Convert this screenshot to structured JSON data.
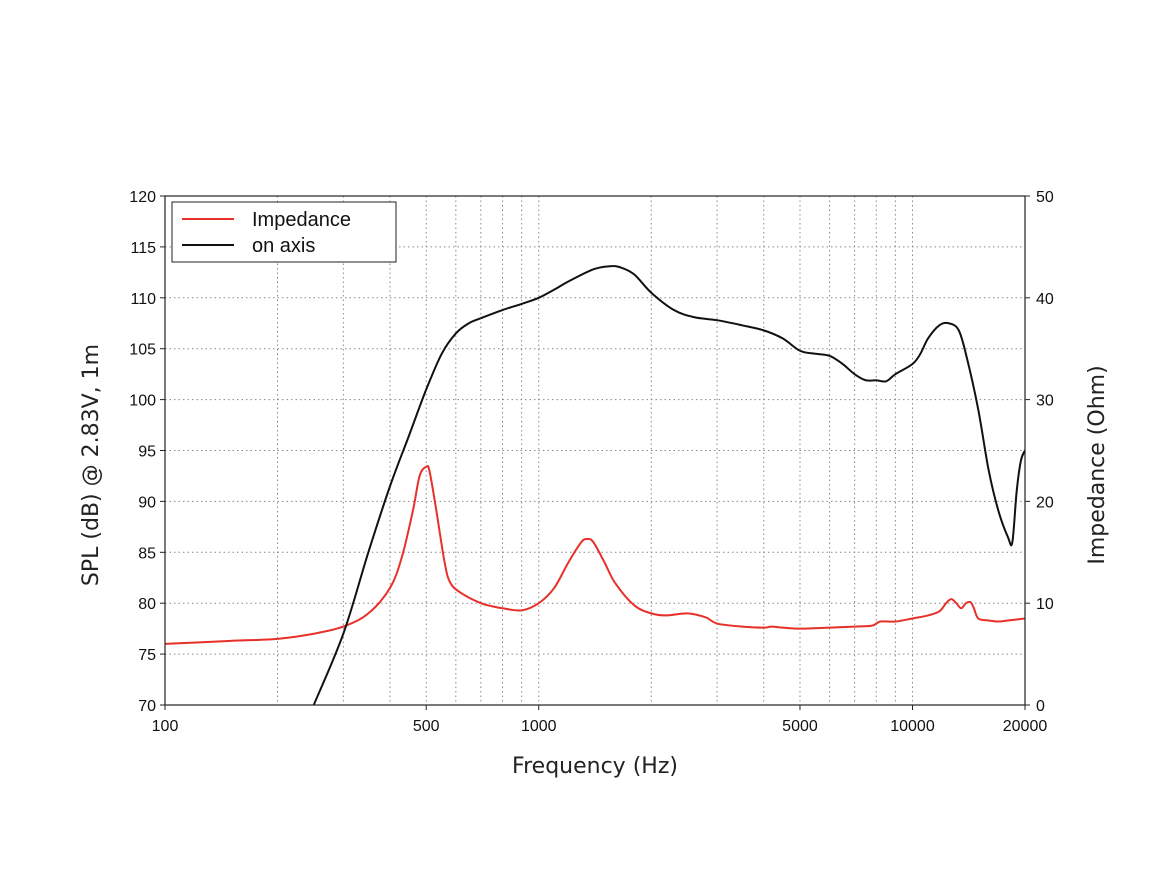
{
  "chart_data": {
    "type": "line",
    "xlabel": "Frequency (Hz)",
    "ylabel_left": "SPL (dB) @ 2.83V, 1m",
    "ylabel_right": "Impedance (Ohm)",
    "x_scale": "log",
    "xlim": [
      100,
      20000
    ],
    "ylim_left": [
      70,
      120
    ],
    "ylim_right": [
      0,
      50
    ],
    "x_tick_labels": [
      "100",
      "500",
      "1000",
      "5000",
      "10000",
      "20000"
    ],
    "x_ticks": [
      100,
      500,
      1000,
      5000,
      10000,
      20000
    ],
    "y_left_ticks": [
      "70",
      "75",
      "80",
      "85",
      "90",
      "95",
      "100",
      "105",
      "110",
      "115",
      "120"
    ],
    "y_right_ticks": [
      "0",
      "10",
      "20",
      "30",
      "40",
      "50"
    ],
    "x_grid": [
      200,
      300,
      400,
      500,
      600,
      700,
      800,
      900,
      1000,
      2000,
      3000,
      4000,
      5000,
      6000,
      7000,
      8000,
      9000,
      10000
    ],
    "grid": true,
    "legend_position": "top-left",
    "series": [
      {
        "name": "Impedance",
        "axis": "right",
        "color": "#e8302a",
        "x": [
          100,
          150,
          200,
          250,
          300,
          350,
          400,
          430,
          460,
          480,
          500,
          510,
          530,
          560,
          580,
          620,
          700,
          750,
          800,
          900,
          1000,
          1100,
          1200,
          1300,
          1350,
          1400,
          1500,
          1600,
          1800,
          2000,
          2200,
          2500,
          2800,
          3000,
          3500,
          4000,
          4200,
          4500,
          5000,
          6000,
          7000,
          7800,
          8200,
          9000,
          10000,
          11000,
          11800,
          12300,
          12700,
          13100,
          13500,
          13900,
          14300,
          14600,
          15000,
          16000,
          17000,
          18000,
          19000,
          20000
        ],
        "values": [
          6.0,
          6.3,
          6.5,
          7.0,
          7.7,
          9.0,
          11.5,
          14.5,
          19.0,
          22.5,
          23.4,
          23.0,
          19.5,
          14.0,
          12.0,
          11.0,
          10.0,
          9.7,
          9.5,
          9.3,
          10.0,
          11.5,
          14.0,
          16.0,
          16.3,
          16.0,
          14.0,
          12.0,
          9.8,
          9.0,
          8.8,
          9.0,
          8.6,
          8.0,
          7.7,
          7.6,
          7.7,
          7.6,
          7.5,
          7.6,
          7.7,
          7.8,
          8.2,
          8.2,
          8.5,
          8.8,
          9.2,
          10.0,
          10.4,
          10.0,
          9.5,
          10.0,
          10.1,
          9.5,
          8.5,
          8.3,
          8.2,
          8.3,
          8.4,
          8.5
        ]
      },
      {
        "name": "on axis",
        "axis": "left",
        "color": "#111111",
        "x": [
          100,
          250,
          300,
          350,
          400,
          450,
          500,
          550,
          600,
          650,
          700,
          800,
          900,
          1000,
          1100,
          1200,
          1400,
          1550,
          1650,
          1800,
          2000,
          2300,
          2600,
          3000,
          3500,
          4000,
          4500,
          5000,
          5500,
          6000,
          6500,
          7000,
          7500,
          8000,
          8500,
          9000,
          10000,
          10500,
          11000,
          11800,
          12500,
          13300,
          14000,
          15000,
          16000,
          17000,
          18000,
          18500,
          19000,
          19500,
          20000
        ],
        "values": [
          null,
          70.0,
          77.0,
          85.0,
          91.5,
          96.5,
          101.0,
          104.5,
          106.5,
          107.5,
          108.0,
          108.8,
          109.4,
          110.0,
          110.8,
          111.6,
          112.8,
          113.1,
          113.0,
          112.3,
          110.5,
          108.8,
          108.1,
          107.8,
          107.3,
          106.8,
          106.0,
          104.8,
          104.5,
          104.3,
          103.5,
          102.5,
          101.9,
          101.9,
          101.8,
          102.5,
          103.5,
          104.5,
          106.0,
          107.3,
          107.5,
          106.8,
          104.0,
          99.0,
          93.0,
          89.0,
          86.5,
          86.0,
          91.0,
          94.0,
          95.0
        ]
      }
    ]
  }
}
